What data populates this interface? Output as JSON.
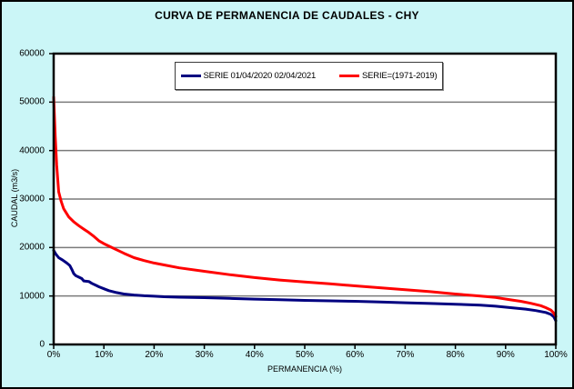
{
  "window": {
    "background_color": "#CBF6F7",
    "border_color": "#000000",
    "plot_background": "#FFFFFF",
    "gridline_color": "#7A7A7A"
  },
  "title": "CURVA DE PERMANENCIA DE CAUDALES - CHY",
  "legend": {
    "entries": [
      {
        "label": "SERIE 01/04/2020 02/04/2021",
        "color": "#000080"
      },
      {
        "label": "SERIE=(1971-2019)",
        "color": "#FF0000"
      }
    ]
  },
  "chart_data": {
    "type": "line",
    "title": "CURVA DE PERMANENCIA DE CAUDALES - CHY",
    "xlabel": "PERMANENCIA (%)",
    "ylabel": "CAUDAL (m3/s)",
    "xlim": [
      0,
      100
    ],
    "ylim": [
      0,
      60000
    ],
    "x_ticks": [
      "0%",
      "10%",
      "20%",
      "30%",
      "40%",
      "50%",
      "60%",
      "70%",
      "80%",
      "90%",
      "100%"
    ],
    "x_tick_values": [
      0,
      10,
      20,
      30,
      40,
      50,
      60,
      70,
      80,
      90,
      100
    ],
    "y_ticks": [
      "0",
      "10000",
      "20000",
      "30000",
      "40000",
      "50000",
      "60000"
    ],
    "y_tick_values": [
      0,
      10000,
      20000,
      30000,
      40000,
      50000,
      60000
    ],
    "grid": true,
    "legend_position": "top-center-inside",
    "series": [
      {
        "name": "SERIE 01/04/2020 02/04/2021",
        "color": "#000080",
        "points": [
          [
            0,
            19400
          ],
          [
            0.4,
            18700
          ],
          [
            1,
            17900
          ],
          [
            1.8,
            17400
          ],
          [
            2.6,
            16800
          ],
          [
            3.2,
            16300
          ],
          [
            3.6,
            15500
          ],
          [
            4,
            14600
          ],
          [
            4.4,
            14200
          ],
          [
            5,
            13900
          ],
          [
            5.6,
            13600
          ],
          [
            6,
            13100
          ],
          [
            7,
            13000
          ],
          [
            7.6,
            12600
          ],
          [
            8.4,
            12200
          ],
          [
            9,
            11900
          ],
          [
            10,
            11500
          ],
          [
            11,
            11100
          ],
          [
            12.5,
            10700
          ],
          [
            14,
            10400
          ],
          [
            16,
            10200
          ],
          [
            18,
            10050
          ],
          [
            20,
            9950
          ],
          [
            22,
            9850
          ],
          [
            25,
            9750
          ],
          [
            30,
            9650
          ],
          [
            35,
            9500
          ],
          [
            40,
            9350
          ],
          [
            45,
            9250
          ],
          [
            50,
            9100
          ],
          [
            55,
            9000
          ],
          [
            60,
            8900
          ],
          [
            65,
            8750
          ],
          [
            70,
            8600
          ],
          [
            75,
            8450
          ],
          [
            80,
            8300
          ],
          [
            85,
            8100
          ],
          [
            88,
            7900
          ],
          [
            91,
            7600
          ],
          [
            94,
            7300
          ],
          [
            96,
            7000
          ],
          [
            98,
            6600
          ],
          [
            99,
            6200
          ],
          [
            99.6,
            5700
          ],
          [
            100,
            4900
          ]
        ]
      },
      {
        "name": "SERIE=(1971-2019)",
        "color": "#FF0000",
        "points": [
          [
            0,
            51000
          ],
          [
            0.3,
            43000
          ],
          [
            0.6,
            37000
          ],
          [
            1,
            31500
          ],
          [
            1.5,
            29500
          ],
          [
            2,
            28000
          ],
          [
            3,
            26300
          ],
          [
            4,
            25300
          ],
          [
            5,
            24500
          ],
          [
            6,
            23800
          ],
          [
            7,
            23100
          ],
          [
            8,
            22300
          ],
          [
            9,
            21400
          ],
          [
            10,
            20800
          ],
          [
            12,
            19800
          ],
          [
            14,
            18800
          ],
          [
            16,
            17900
          ],
          [
            18,
            17300
          ],
          [
            20,
            16800
          ],
          [
            22,
            16400
          ],
          [
            25,
            15800
          ],
          [
            30,
            15100
          ],
          [
            35,
            14400
          ],
          [
            40,
            13800
          ],
          [
            45,
            13300
          ],
          [
            50,
            12900
          ],
          [
            55,
            12500
          ],
          [
            60,
            12100
          ],
          [
            65,
            11700
          ],
          [
            70,
            11300
          ],
          [
            75,
            10900
          ],
          [
            80,
            10400
          ],
          [
            85,
            10000
          ],
          [
            88,
            9700
          ],
          [
            91,
            9200
          ],
          [
            93,
            8900
          ],
          [
            95,
            8500
          ],
          [
            97,
            8000
          ],
          [
            98,
            7600
          ],
          [
            99,
            7100
          ],
          [
            99.5,
            6600
          ],
          [
            100,
            5800
          ]
        ]
      }
    ]
  }
}
